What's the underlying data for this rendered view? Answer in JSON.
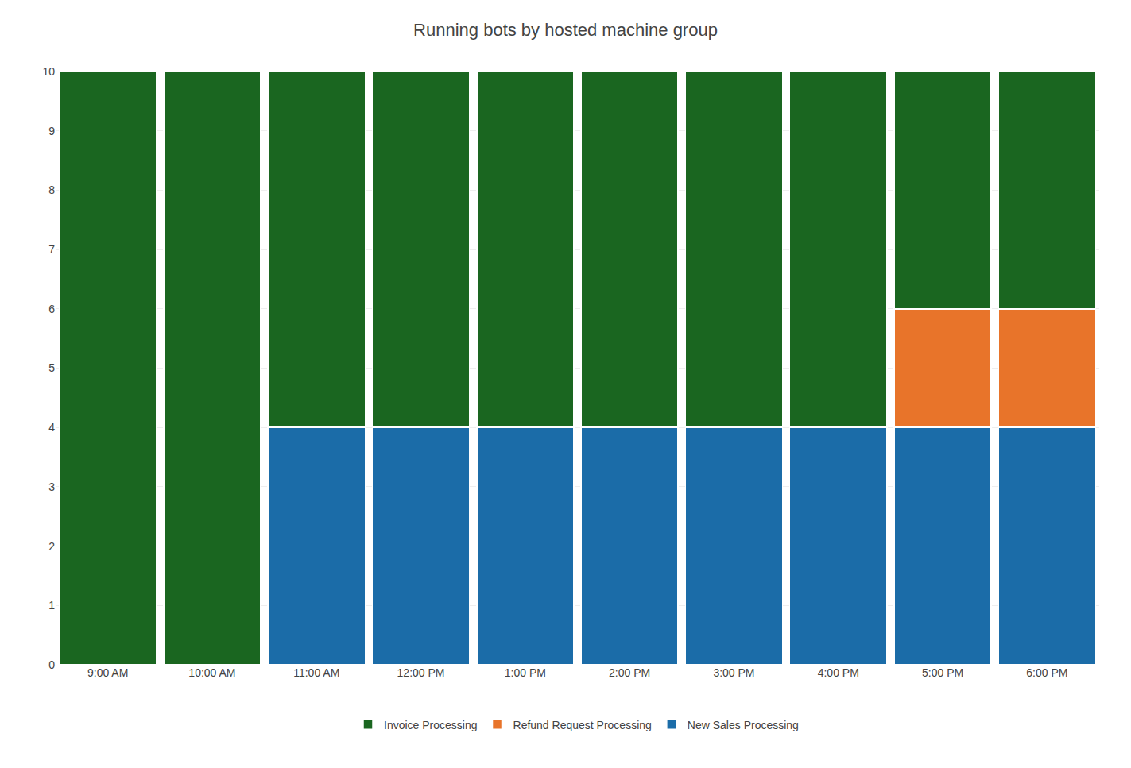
{
  "chart_data": {
    "type": "bar",
    "stacked": true,
    "title": "Running bots by hosted machine group",
    "categories": [
      "9:00 AM",
      "10:00 AM",
      "11:00 AM",
      "12:00 PM",
      "1:00 PM",
      "2:00 PM",
      "3:00 PM",
      "4:00 PM",
      "5:00 PM",
      "6:00 PM"
    ],
    "series": [
      {
        "name": "New Sales Processing",
        "color": "#1B6CA8",
        "values": [
          0,
          0,
          4,
          4,
          4,
          4,
          4,
          4,
          4,
          4
        ]
      },
      {
        "name": "Refund Request Processing",
        "color": "#E8742A",
        "values": [
          0,
          0,
          0,
          0,
          0,
          0,
          0,
          0,
          2,
          2
        ]
      },
      {
        "name": "Invoice Processing",
        "color": "#1A6620",
        "values": [
          10,
          10,
          6,
          6,
          6,
          6,
          6,
          6,
          4,
          4
        ]
      }
    ],
    "ylim": [
      0,
      10
    ],
    "yticks": [
      0,
      1,
      2,
      3,
      4,
      5,
      6,
      7,
      8,
      9,
      10
    ],
    "grid": true,
    "legend": "bottom"
  }
}
